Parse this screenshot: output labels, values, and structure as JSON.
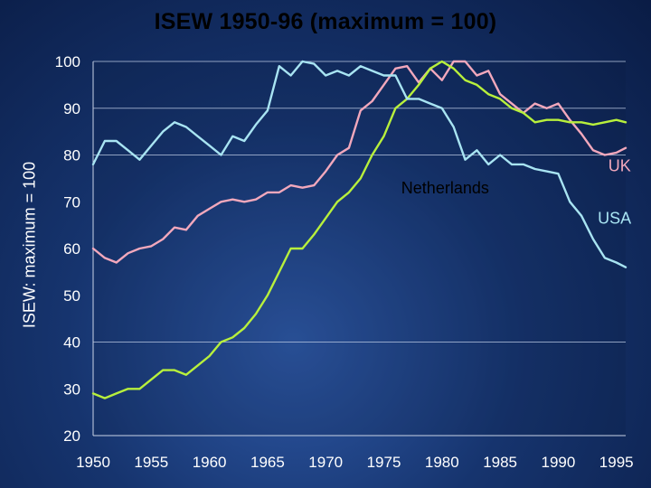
{
  "chart_data": {
    "type": "line",
    "title": "ISEW 1950-96 (maximum = 100)",
    "xlabel": "",
    "ylabel": "ISEW: maximum = 100",
    "xlim": [
      1950,
      1995.8
    ],
    "ylim": [
      20,
      100
    ],
    "xticks": [
      1950,
      1955,
      1960,
      1965,
      1970,
      1975,
      1980,
      1985,
      1990,
      1995
    ],
    "yticks": [
      20,
      30,
      40,
      50,
      60,
      70,
      80,
      90,
      100
    ],
    "grid": "horizontal at 40, 80, 90, 100",
    "series": [
      {
        "name": "UK",
        "color": "#f2a8bc",
        "points": [
          [
            1950,
            60
          ],
          [
            1951,
            58
          ],
          [
            1952,
            57
          ],
          [
            1953,
            59
          ],
          [
            1954,
            60
          ],
          [
            1955,
            60.5
          ],
          [
            1956,
            62
          ],
          [
            1957,
            64.5
          ],
          [
            1958,
            64
          ],
          [
            1959,
            67
          ],
          [
            1960,
            68.5
          ],
          [
            1961,
            70
          ],
          [
            1962,
            70.5
          ],
          [
            1963,
            70
          ],
          [
            1964,
            70.5
          ],
          [
            1965,
            72
          ],
          [
            1966,
            72
          ],
          [
            1967,
            73.5
          ],
          [
            1968,
            73
          ],
          [
            1969,
            73.5
          ],
          [
            1970,
            76.5
          ],
          [
            1971,
            80
          ],
          [
            1972,
            81.5
          ],
          [
            1973,
            89.5
          ],
          [
            1974,
            91.5
          ],
          [
            1975,
            95
          ],
          [
            1976,
            98.5
          ],
          [
            1977,
            99
          ],
          [
            1978,
            95.5
          ],
          [
            1979,
            98.5
          ],
          [
            1980,
            96
          ],
          [
            1981,
            100
          ],
          [
            1982,
            100
          ],
          [
            1983,
            97
          ],
          [
            1984,
            98
          ],
          [
            1985,
            93
          ],
          [
            1986,
            91
          ],
          [
            1987,
            89
          ],
          [
            1988,
            91
          ],
          [
            1989,
            90
          ],
          [
            1990,
            91
          ],
          [
            1991,
            87.5
          ],
          [
            1992,
            84.5
          ],
          [
            1993,
            81
          ],
          [
            1994,
            80
          ],
          [
            1995,
            80.5
          ],
          [
            1995.8,
            81.5
          ]
        ]
      },
      {
        "name": "Netherlands",
        "color": "#b8f03c",
        "points": [
          [
            1950,
            29
          ],
          [
            1951,
            28
          ],
          [
            1952,
            29
          ],
          [
            1953,
            30
          ],
          [
            1954,
            30
          ],
          [
            1955,
            32
          ],
          [
            1956,
            34
          ],
          [
            1957,
            34
          ],
          [
            1958,
            33
          ],
          [
            1959,
            35
          ],
          [
            1960,
            37
          ],
          [
            1961,
            40
          ],
          [
            1962,
            41
          ],
          [
            1963,
            43
          ],
          [
            1964,
            46
          ],
          [
            1965,
            50
          ],
          [
            1966,
            55
          ],
          [
            1967,
            60
          ],
          [
            1968,
            60
          ],
          [
            1969,
            63
          ],
          [
            1970,
            66.5
          ],
          [
            1971,
            70
          ],
          [
            1972,
            72
          ],
          [
            1973,
            75
          ],
          [
            1974,
            80
          ],
          [
            1975,
            84
          ],
          [
            1976,
            90
          ],
          [
            1977,
            92
          ],
          [
            1978,
            95
          ],
          [
            1979,
            98.5
          ],
          [
            1980,
            100
          ],
          [
            1981,
            98.5
          ],
          [
            1982,
            96
          ],
          [
            1983,
            95
          ],
          [
            1984,
            93
          ],
          [
            1985,
            92
          ],
          [
            1986,
            90
          ],
          [
            1987,
            89
          ],
          [
            1988,
            87
          ],
          [
            1989,
            87.5
          ],
          [
            1990,
            87.5
          ],
          [
            1991,
            87
          ],
          [
            1992,
            87
          ],
          [
            1993,
            86.5
          ],
          [
            1994,
            87
          ],
          [
            1995,
            87.5
          ],
          [
            1995.8,
            87
          ]
        ]
      },
      {
        "name": "USA",
        "color": "#a8e4f2",
        "points": [
          [
            1950,
            78
          ],
          [
            1951,
            83
          ],
          [
            1952,
            83
          ],
          [
            1953,
            81
          ],
          [
            1954,
            79
          ],
          [
            1955,
            82
          ],
          [
            1956,
            85
          ],
          [
            1957,
            87
          ],
          [
            1958,
            86
          ],
          [
            1959,
            84
          ],
          [
            1960,
            82
          ],
          [
            1961,
            80
          ],
          [
            1962,
            84
          ],
          [
            1963,
            83
          ],
          [
            1964,
            86.5
          ],
          [
            1965,
            89.5
          ],
          [
            1966,
            99
          ],
          [
            1967,
            97
          ],
          [
            1968,
            100
          ],
          [
            1969,
            99.5
          ],
          [
            1970,
            97
          ],
          [
            1971,
            98
          ],
          [
            1972,
            97
          ],
          [
            1973,
            99
          ],
          [
            1974,
            98
          ],
          [
            1975,
            97
          ],
          [
            1976,
            97
          ],
          [
            1977,
            92
          ],
          [
            1978,
            92
          ],
          [
            1979,
            91
          ],
          [
            1980,
            90
          ],
          [
            1981,
            86
          ],
          [
            1982,
            79
          ],
          [
            1983,
            81
          ],
          [
            1984,
            78
          ],
          [
            1985,
            80
          ],
          [
            1986,
            78
          ],
          [
            1987,
            78
          ],
          [
            1988,
            77
          ],
          [
            1989,
            76.5
          ],
          [
            1990,
            76
          ],
          [
            1991,
            70
          ],
          [
            1992,
            67
          ],
          [
            1993,
            62
          ],
          [
            1994,
            58
          ],
          [
            1995,
            57
          ],
          [
            1995.8,
            56
          ]
        ]
      }
    ],
    "annotations": [
      {
        "text": "UK",
        "x": 1994.3,
        "y": 76.5,
        "color": "#f2a8bc"
      },
      {
        "text": "Netherlands",
        "x": 1976.5,
        "y": 71.8,
        "color": "#000000"
      },
      {
        "text": "USA",
        "x": 1993.4,
        "y": 65.3,
        "color": "#a8e4f2"
      }
    ]
  }
}
